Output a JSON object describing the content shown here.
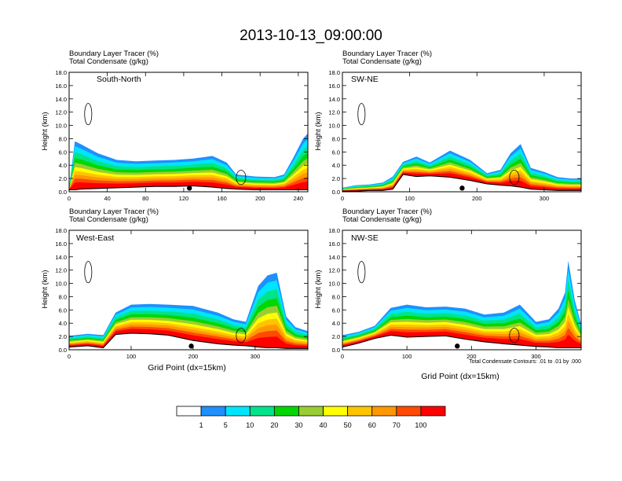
{
  "chart_data": {
    "type": "heatmap",
    "title": "2013-10-13_09:00:00",
    "panel_labels": [
      "Boundary Layer Tracer   (%)",
      "Total Condensate   (g/kg)"
    ],
    "ylabel": "Height (km)",
    "xlabel": "Grid Point (dx=15km)",
    "ylim": [
      0,
      18
    ],
    "y_ticks": [
      "0.0",
      "2.0",
      "4.0",
      "6.0",
      "8.0",
      "10.0",
      "12.0",
      "14.0",
      "16.0",
      "18.0"
    ],
    "colorbar": {
      "levels": [
        "1",
        "5",
        "10",
        "20",
        "30",
        "40",
        "50",
        "60",
        "70",
        "100"
      ],
      "colors": [
        "#ffffff",
        "#1e90ff",
        "#00e5ff",
        "#00e38a",
        "#00d600",
        "#9acd32",
        "#ffff00",
        "#ffc400",
        "#ff9800",
        "#ff4a00",
        "#ff0000"
      ]
    },
    "contour_note": "Total Condensate Contours: .01 to .01 by .000",
    "panels": [
      {
        "id": "south-north",
        "name": "South-North",
        "xlim": [
          0,
          250
        ],
        "x_ticks": [
          0,
          40,
          80,
          120,
          160,
          200,
          240
        ],
        "marker_x": 126,
        "x": [
          0,
          6,
          12,
          30,
          50,
          70,
          90,
          110,
          130,
          150,
          165,
          175,
          195,
          215,
          225,
          235,
          245,
          250
        ],
        "tracer_top_km": [
          0.6,
          7.6,
          7.2,
          5.8,
          4.8,
          4.6,
          4.7,
          4.8,
          5.0,
          5.4,
          4.4,
          2.6,
          2.3,
          2.2,
          2.6,
          5.2,
          8.0,
          8.8
        ],
        "terrain_km": [
          0.3,
          0.3,
          0.4,
          0.5,
          0.6,
          0.7,
          0.8,
          0.8,
          0.9,
          0.7,
          0.5,
          0.4,
          0.3,
          0.3,
          0.3,
          0.3,
          0.3,
          0.3
        ]
      },
      {
        "id": "sw-ne",
        "name": "SW-NE",
        "xlim": [
          0,
          355
        ],
        "x_ticks": [
          0,
          100,
          200,
          300
        ],
        "marker_x": 178,
        "x": [
          0,
          20,
          40,
          60,
          75,
          90,
          110,
          130,
          160,
          190,
          215,
          235,
          250,
          265,
          280,
          300,
          320,
          340,
          355
        ],
        "tracer_top_km": [
          0.6,
          1.0,
          1.1,
          1.4,
          2.3,
          4.5,
          5.3,
          4.4,
          6.2,
          4.8,
          2.8,
          3.3,
          5.8,
          7.2,
          3.6,
          3.0,
          2.2,
          2.0,
          2.0
        ],
        "terrain_km": [
          0.1,
          0.1,
          0.2,
          0.2,
          0.4,
          2.6,
          2.3,
          2.4,
          2.2,
          1.7,
          1.2,
          1.0,
          0.9,
          0.7,
          0.4,
          0.3,
          0.2,
          0.2,
          0.2
        ]
      },
      {
        "id": "west-east",
        "name": "West-East",
        "xlim": [
          0,
          385
        ],
        "x_ticks": [
          0,
          100,
          200,
          300
        ],
        "marker_x": 197,
        "x": [
          0,
          30,
          55,
          75,
          100,
          130,
          160,
          200,
          240,
          265,
          285,
          305,
          320,
          335,
          350,
          365,
          385
        ],
        "tracer_top_km": [
          2.1,
          2.4,
          2.2,
          5.6,
          6.8,
          6.9,
          6.8,
          6.6,
          5.6,
          4.6,
          4.2,
          9.6,
          11.2,
          11.6,
          5.0,
          3.4,
          2.8
        ],
        "terrain_km": [
          0.4,
          0.6,
          0.3,
          2.3,
          2.5,
          2.4,
          2.2,
          1.4,
          0.9,
          0.7,
          0.6,
          0.4,
          0.3,
          0.3,
          0.2,
          0.2,
          0.2
        ]
      },
      {
        "id": "nw-se",
        "name": "NW-SE",
        "xlim": [
          0,
          370
        ],
        "x_ticks": [
          0,
          100,
          200,
          300
        ],
        "marker_x": 178,
        "x": [
          0,
          25,
          50,
          75,
          100,
          130,
          160,
          190,
          220,
          250,
          275,
          300,
          320,
          335,
          345,
          350,
          360,
          370
        ],
        "tracer_top_km": [
          2.2,
          2.7,
          3.6,
          6.3,
          6.8,
          6.4,
          6.5,
          6.2,
          5.3,
          5.6,
          6.8,
          4.2,
          4.6,
          6.2,
          8.6,
          13.4,
          7.5,
          3.8
        ],
        "terrain_km": [
          0.4,
          1.0,
          1.7,
          2.2,
          1.9,
          2.0,
          2.1,
          1.6,
          1.2,
          0.9,
          0.7,
          0.5,
          0.4,
          0.3,
          0.3,
          0.3,
          0.3,
          0.3
        ]
      }
    ]
  }
}
